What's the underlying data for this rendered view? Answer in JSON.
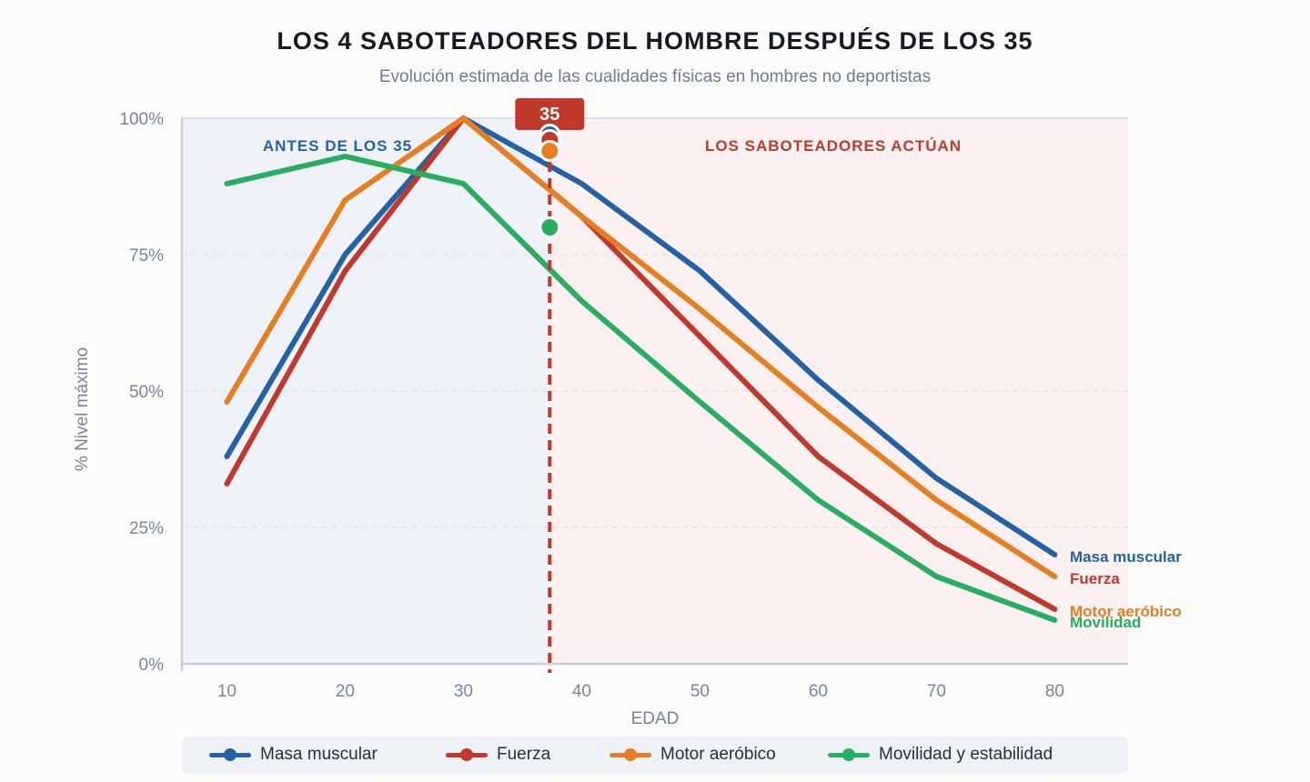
{
  "title": "LOS 4 SABOTEADORES DEL HOMBRE DESPUÉS DE LOS 35",
  "subtitle": "Evolución estimada de las cualidades físicas en hombres no deportistas",
  "chart_data": {
    "type": "line",
    "title": "LOS 4 SABOTEADORES DEL HOMBRE DESPUÉS DE LOS 35",
    "subtitle": "Evolución estimada de las cualidades físicas en hombres no deportistas",
    "xlabel": "EDAD",
    "ylabel": "% Nivel máximo",
    "x": [
      10,
      20,
      30,
      40,
      50,
      60,
      70,
      80
    ],
    "xlim": [
      6.2,
      86.2
    ],
    "ylim": [
      0,
      100
    ],
    "yticks": [
      0,
      25,
      50,
      75,
      100
    ],
    "ytick_labels": [
      "0%",
      "25%",
      "50%",
      "75%",
      "100%"
    ],
    "grid": "horizontal dashed",
    "legend": "bottom",
    "marker_x": 37.3,
    "marker_label": "35",
    "region_labels": {
      "before": "ANTES DE LOS 35",
      "after": "LOS SABOTEADORES ACTÚAN"
    },
    "series": [
      {
        "name": "Masa muscular",
        "end_label": "Masa muscular",
        "color": "#2462a8",
        "values": [
          38,
          75,
          100,
          88,
          72,
          52,
          34,
          20
        ],
        "marker_value": 97
      },
      {
        "name": "Fuerza",
        "end_label": "Fuerza",
        "color": "#c0392b",
        "values": [
          33,
          72,
          100,
          82,
          60,
          38,
          22,
          10
        ],
        "marker_value": 96
      },
      {
        "name": "Motor aeróbico",
        "end_label": "Motor aeróbico",
        "color": "#e67e22",
        "values": [
          48,
          85,
          100,
          82,
          65,
          47,
          30,
          16
        ],
        "marker_value": 94
      },
      {
        "name": "Movilidad y estabilidad",
        "end_label": "Movilidad",
        "color": "#27ae60",
        "values": [
          88,
          93,
          88,
          66.5,
          48,
          30,
          16,
          8
        ],
        "marker_value": 80
      }
    ]
  }
}
